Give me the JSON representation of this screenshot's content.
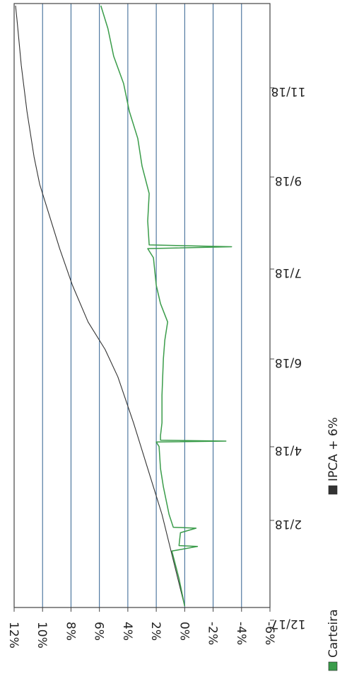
{
  "chart_data": {
    "type": "line",
    "orientation": "rotated-90",
    "title": "",
    "xlabel": "",
    "ylabel": "",
    "x_ticks": [
      "12/17",
      "2/18",
      "4/18",
      "6/18",
      "7/18",
      "9/18",
      "11/18"
    ],
    "y_ticks": [
      "12%",
      "10%",
      "8%",
      "6%",
      "4%",
      "2%",
      "0%",
      "-2%",
      "-4%",
      "-6%"
    ],
    "ylim": [
      -6,
      12
    ],
    "grid": true,
    "legend_position": "bottom",
    "series": [
      {
        "name": "IPCA + 6%",
        "color": "#333333",
        "points": [
          [
            0,
            0
          ],
          [
            0.5,
            0.8
          ],
          [
            1.0,
            1.6
          ],
          [
            1.3,
            2.2
          ],
          [
            1.7,
            3.0
          ],
          [
            2.0,
            3.6
          ],
          [
            2.5,
            4.7
          ],
          [
            2.8,
            5.6
          ],
          [
            3.1,
            6.8
          ],
          [
            3.5,
            7.9
          ],
          [
            3.9,
            8.8
          ],
          [
            4.3,
            9.6
          ],
          [
            4.6,
            10.2
          ],
          [
            4.9,
            10.6
          ],
          [
            5.4,
            11.1
          ],
          [
            5.9,
            11.5
          ],
          [
            6.4,
            11.8
          ],
          [
            6.55,
            11.9
          ]
        ]
      },
      {
        "name": "Carteira",
        "color": "#3a9c4a",
        "points": [
          [
            0,
            0
          ],
          [
            0.3,
            0.4
          ],
          [
            0.6,
            0.9
          ],
          [
            0.65,
            -0.9
          ],
          [
            0.66,
            0.4
          ],
          [
            0.8,
            0.3
          ],
          [
            0.85,
            -0.8
          ],
          [
            0.86,
            0.8
          ],
          [
            1.0,
            1.1
          ],
          [
            1.3,
            1.5
          ],
          [
            1.5,
            1.7
          ],
          [
            1.74,
            1.8
          ],
          [
            1.79,
            2.0
          ],
          [
            1.8,
            -2.9
          ],
          [
            1.81,
            1.7
          ],
          [
            1.86,
            1.7
          ],
          [
            2.0,
            1.6
          ],
          [
            2.3,
            1.6
          ],
          [
            2.7,
            1.5
          ],
          [
            2.9,
            1.4
          ],
          [
            3.1,
            1.2
          ],
          [
            3.3,
            1.7
          ],
          [
            3.5,
            2.0
          ],
          [
            3.8,
            2.2
          ],
          [
            3.9,
            2.6
          ],
          [
            3.92,
            -3.3
          ],
          [
            3.94,
            2.5
          ],
          [
            4.2,
            2.6
          ],
          [
            4.5,
            2.5
          ],
          [
            4.8,
            3.0
          ],
          [
            5.1,
            3.3
          ],
          [
            5.4,
            3.9
          ],
          [
            5.7,
            4.3
          ],
          [
            6.0,
            5.0
          ],
          [
            6.3,
            5.4
          ],
          [
            6.55,
            5.9
          ]
        ]
      }
    ]
  },
  "legend": {
    "items": [
      {
        "label": "Carteira",
        "color": "#3a9c4a"
      },
      {
        "label": "IPCA + 6%",
        "color": "#333333"
      }
    ]
  }
}
